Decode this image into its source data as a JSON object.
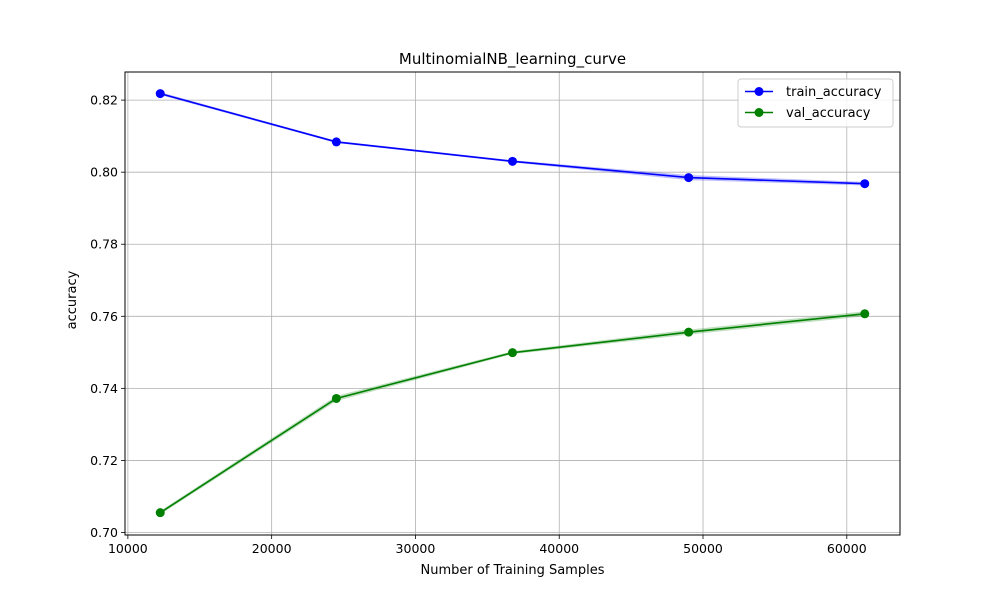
{
  "chart_data": {
    "type": "line",
    "title": "MultinomialNB_learning_curve",
    "xlabel": "Number of Training Samples",
    "ylabel": "accuracy",
    "xlim": [
      9800,
      63700
    ],
    "ylim": [
      0.6993,
      0.8278
    ],
    "xticks": [
      10000,
      20000,
      30000,
      40000,
      50000,
      60000
    ],
    "yticks": [
      0.7,
      0.72,
      0.74,
      0.76,
      0.78,
      0.8,
      0.82
    ],
    "grid": true,
    "legend_position": "top-right",
    "x": [
      12250,
      24500,
      36750,
      49000,
      61250
    ],
    "series": [
      {
        "name": "train_accuracy",
        "color": "#0000ff",
        "values": [
          0.8218,
          0.8084,
          0.803,
          0.7985,
          0.7968
        ],
        "band_lower": [
          0.8214,
          0.8081,
          0.8027,
          0.7978,
          0.7963
        ],
        "band_upper": [
          0.8222,
          0.8087,
          0.8033,
          0.7992,
          0.7973
        ]
      },
      {
        "name": "val_accuracy",
        "color": "#008000",
        "values": [
          0.7055,
          0.7372,
          0.7499,
          0.7556,
          0.7607
        ],
        "band_lower": [
          0.705,
          0.7365,
          0.7495,
          0.7549,
          0.76
        ],
        "band_upper": [
          0.706,
          0.7379,
          0.7503,
          0.7563,
          0.7614
        ]
      }
    ]
  }
}
